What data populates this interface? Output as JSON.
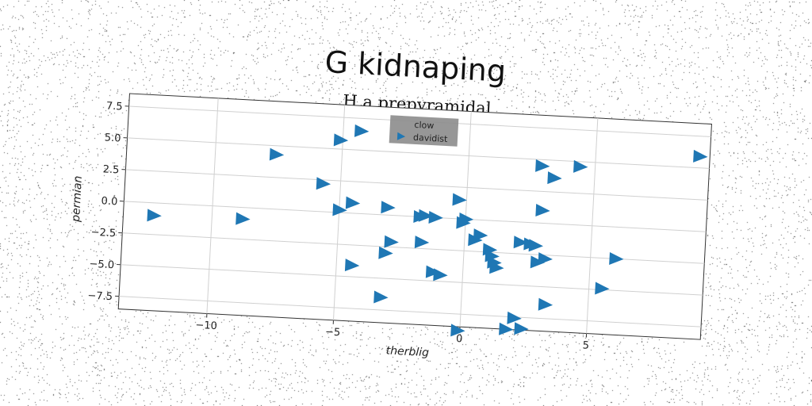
{
  "chart_data": {
    "type": "scatter",
    "title": "G kidnaping",
    "subtitle": "H a prepyramidal",
    "xlabel": "therblig",
    "ylabel": "permian",
    "xlim": [
      -13.5,
      9.5
    ],
    "ylim": [
      -8.5,
      8.5
    ],
    "xticks": [
      -10,
      -5,
      0,
      5
    ],
    "xtick_labels": [
      "−10",
      "−5",
      "0",
      "5"
    ],
    "yticks": [
      7.5,
      5.0,
      2.5,
      0.0,
      -2.5,
      -5.0,
      -7.5
    ],
    "ytick_labels": [
      "7.5",
      "5.0",
      "2.5",
      "0.0",
      "−2.5",
      "−5.0",
      "−7.5"
    ],
    "grid": true,
    "legend": {
      "title": "clow",
      "placement": "top-center"
    },
    "series": [
      {
        "name": "davidist",
        "marker": "triangle-right",
        "color": "#1f77b4",
        "points": [
          [
            -12.3,
            -1.0
          ],
          [
            -8.8,
            -0.9
          ],
          [
            -7.6,
            4.3
          ],
          [
            -5.7,
            2.2
          ],
          [
            -5.1,
            5.7
          ],
          [
            -5.0,
            0.2
          ],
          [
            -4.5,
            0.8
          ],
          [
            -4.3,
            6.5
          ],
          [
            -4.4,
            -4.1
          ],
          [
            -3.1,
            0.6
          ],
          [
            -3.1,
            -3.0
          ],
          [
            -2.9,
            -2.1
          ],
          [
            -3.2,
            -6.5
          ],
          [
            -1.8,
            0.0
          ],
          [
            -1.6,
            0.1
          ],
          [
            -1.2,
            0.0
          ],
          [
            -1.7,
            -2.0
          ],
          [
            -1.2,
            -4.3
          ],
          [
            -0.9,
            -4.5
          ],
          [
            -0.3,
            1.5
          ],
          [
            -0.1,
            -0.3
          ],
          [
            0.0,
            0.0
          ],
          [
            0.4,
            -1.6
          ],
          [
            0.6,
            -1.2
          ],
          [
            1.0,
            -2.3
          ],
          [
            1.1,
            -2.8
          ],
          [
            1.2,
            -3.3
          ],
          [
            1.3,
            -3.7
          ],
          [
            -0.1,
            -8.8
          ],
          [
            1.8,
            -8.5
          ],
          [
            2.4,
            -8.4
          ],
          [
            2.1,
            -7.6
          ],
          [
            2.2,
            -1.6
          ],
          [
            2.6,
            -1.7
          ],
          [
            2.8,
            -1.8
          ],
          [
            2.9,
            -3.1
          ],
          [
            3.2,
            -2.8
          ],
          [
            2.9,
            4.5
          ],
          [
            3.4,
            3.6
          ],
          [
            4.4,
            4.6
          ],
          [
            3.0,
            1.0
          ],
          [
            3.3,
            -6.4
          ],
          [
            5.5,
            -4.9
          ],
          [
            6.0,
            -2.5
          ],
          [
            9.1,
            5.9
          ]
        ]
      }
    ]
  }
}
